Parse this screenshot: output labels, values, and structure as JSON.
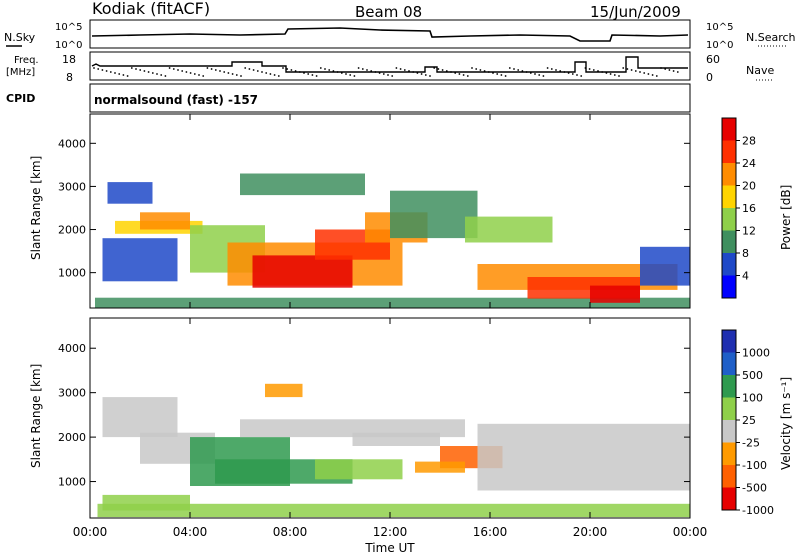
{
  "header": {
    "station": "Kodiak (fitACF)",
    "beam": "Beam 08",
    "date": "15/Jun/2009"
  },
  "top_panels": {
    "nsky_label": "N.Sky",
    "nsky_ticks": [
      "10^5",
      "10^0"
    ],
    "nsearch_label": "N.Search",
    "nsearch_ticks": [
      "10^5",
      "10^0"
    ],
    "freq_label": "Freq.",
    "freq_unit": "[MHz]",
    "freq_ticks": [
      "18",
      "8"
    ],
    "nave_label": "Nave",
    "nave_ticks": [
      "60",
      "0"
    ],
    "cpid_label": "CPID",
    "cpid_value": "normalsound (fast) -157"
  },
  "colors": {
    "power": [
      "#0000ff",
      "#1f49c8",
      "#3f8f5f",
      "#8fd04a",
      "#ffd400",
      "#ff8c00",
      "#ff3000",
      "#e60000"
    ],
    "velocity": [
      "#e60000",
      "#ff6000",
      "#ff9a00",
      "#c8c8c8",
      "#8fd04a",
      "#2f9a4f",
      "#1f5fc8",
      "#1f2fb0"
    ]
  },
  "chart_data": [
    {
      "type": "heatmap",
      "name": "power",
      "xlabel": "Time UT",
      "ylabel": "Slant Range [km]",
      "x_ticks": [
        "00:00",
        "04:00",
        "08:00",
        "12:00",
        "16:00",
        "20:00",
        "00:00"
      ],
      "y_ticks": [
        1000,
        2000,
        3000,
        4000
      ],
      "ylim": [
        180,
        4680
      ],
      "colorbar_label": "Power [dB]",
      "colorbar_ticks": [
        "4",
        "8",
        "12",
        "16",
        "20",
        "24",
        "28"
      ],
      "regions": [
        {
          "t0": 0.2,
          "t1": 24,
          "r0": 180,
          "r1": 420,
          "level": 2
        },
        {
          "t0": 0.5,
          "t1": 3.5,
          "r0": 800,
          "r1": 1800,
          "level": 1
        },
        {
          "t0": 1.0,
          "t1": 4.5,
          "r0": 1900,
          "r1": 2200,
          "level": 4
        },
        {
          "t0": 2.0,
          "t1": 4.0,
          "r0": 2000,
          "r1": 2400,
          "level": 5
        },
        {
          "t0": 0.7,
          "t1": 2.5,
          "r0": 2600,
          "r1": 3100,
          "level": 1
        },
        {
          "t0": 4.0,
          "t1": 7.0,
          "r0": 1000,
          "r1": 2100,
          "level": 3
        },
        {
          "t0": 5.5,
          "t1": 12.5,
          "r0": 700,
          "r1": 1700,
          "level": 5
        },
        {
          "t0": 6.5,
          "t1": 10.5,
          "r0": 650,
          "r1": 1400,
          "level": 7
        },
        {
          "t0": 9.0,
          "t1": 12.0,
          "r0": 1300,
          "r1": 2000,
          "level": 6
        },
        {
          "t0": 11.0,
          "t1": 13.5,
          "r0": 1700,
          "r1": 2400,
          "level": 5
        },
        {
          "t0": 6.0,
          "t1": 11.0,
          "r0": 2800,
          "r1": 3300,
          "level": 2
        },
        {
          "t0": 12.0,
          "t1": 15.5,
          "r0": 1800,
          "r1": 2900,
          "level": 2
        },
        {
          "t0": 15.5,
          "t1": 23.5,
          "r0": 600,
          "r1": 1200,
          "level": 5
        },
        {
          "t0": 17.5,
          "t1": 22.0,
          "r0": 400,
          "r1": 900,
          "level": 6
        },
        {
          "t0": 20.0,
          "t1": 22.0,
          "r0": 300,
          "r1": 700,
          "level": 7
        },
        {
          "t0": 15.0,
          "t1": 18.5,
          "r0": 1700,
          "r1": 2300,
          "level": 3
        },
        {
          "t0": 22.0,
          "t1": 24.0,
          "r0": 700,
          "r1": 1600,
          "level": 1
        }
      ]
    },
    {
      "type": "heatmap",
      "name": "velocity",
      "xlabel": "Time UT",
      "ylabel": "Slant Range [km]",
      "x_ticks": [
        "00:00",
        "04:00",
        "08:00",
        "12:00",
        "16:00",
        "20:00",
        "00:00"
      ],
      "y_ticks": [
        1000,
        2000,
        3000,
        4000
      ],
      "ylim": [
        180,
        4680
      ],
      "colorbar_label": "Velocity [m s⁻¹]",
      "colorbar_ticks": [
        "1000",
        "500",
        "100",
        "25",
        "-25",
        "-100",
        "-500",
        "-1000"
      ],
      "regions": [
        {
          "t0": 0.3,
          "t1": 24,
          "r0": 200,
          "r1": 500,
          "level": 4
        },
        {
          "t0": 0.5,
          "t1": 3.5,
          "r0": 2000,
          "r1": 2900,
          "level": 3
        },
        {
          "t0": 2.0,
          "t1": 5.0,
          "r0": 1400,
          "r1": 2100,
          "level": 3
        },
        {
          "t0": 4.0,
          "t1": 8.0,
          "r0": 900,
          "r1": 2000,
          "level": 5
        },
        {
          "t0": 5.0,
          "t1": 10.5,
          "r0": 950,
          "r1": 1500,
          "level": 5
        },
        {
          "t0": 9.0,
          "t1": 12.5,
          "r0": 1050,
          "r1": 1500,
          "level": 4
        },
        {
          "t0": 10.5,
          "t1": 14.0,
          "r0": 1800,
          "r1": 2100,
          "level": 3
        },
        {
          "t0": 14.0,
          "t1": 16.5,
          "r0": 1300,
          "r1": 1800,
          "level": 1
        },
        {
          "t0": 13.0,
          "t1": 15.0,
          "r0": 1200,
          "r1": 1450,
          "level": 2
        },
        {
          "t0": 6.0,
          "t1": 15.0,
          "r0": 2000,
          "r1": 2400,
          "level": 3
        },
        {
          "t0": 15.5,
          "t1": 24.0,
          "r0": 800,
          "r1": 2300,
          "level": 3
        },
        {
          "t0": 0.5,
          "t1": 4.0,
          "r0": 350,
          "r1": 700,
          "level": 4
        },
        {
          "t0": 7.0,
          "t1": 8.5,
          "r0": 2900,
          "r1": 3200,
          "level": 2
        }
      ]
    }
  ]
}
